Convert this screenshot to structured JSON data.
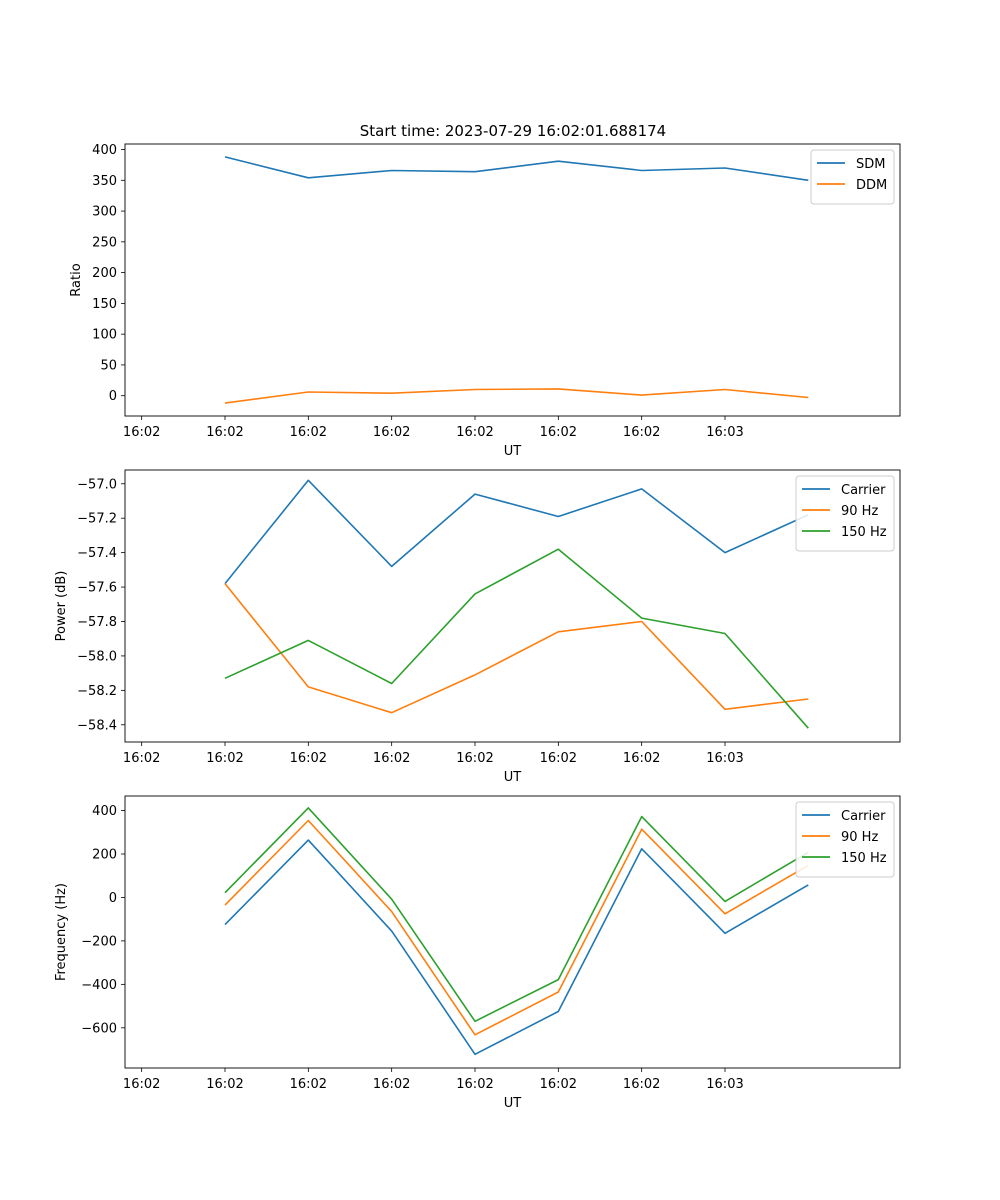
{
  "figure_title": "Start time: 2023-07-29 16:02:01.688174",
  "chart_data": [
    {
      "type": "line",
      "title": "Start time: 2023-07-29 16:02:01.688174",
      "xlabel": "UT",
      "ylabel": "Ratio",
      "x_tick_labels": [
        "16:02",
        "16:02",
        "16:02",
        "16:02",
        "16:02",
        "16:02",
        "16:02",
        "16:03"
      ],
      "x_index": [
        1,
        2,
        3,
        4,
        5,
        6,
        7,
        8
      ],
      "xlim": [
        -0.2,
        9.1
      ],
      "ylim": [
        -33,
        409
      ],
      "yticks": [
        0,
        50,
        100,
        150,
        200,
        250,
        300,
        350,
        400
      ],
      "yticks_labels": [
        "0",
        "50",
        "100",
        "150",
        "200",
        "250",
        "300",
        "350",
        "400"
      ],
      "legend_position": "top-right",
      "series": [
        {
          "name": "SDM",
          "color": "#1f77b4",
          "values": [
            388,
            354,
            366,
            364,
            381,
            366,
            370,
            350
          ]
        },
        {
          "name": "DDM",
          "color": "#ff7f0e",
          "values": [
            -12,
            6,
            4,
            10,
            11,
            1,
            10,
            -3
          ]
        }
      ]
    },
    {
      "type": "line",
      "title": "",
      "xlabel": "UT",
      "ylabel": "Power (dB)",
      "x_tick_labels": [
        "16:02",
        "16:02",
        "16:02",
        "16:02",
        "16:02",
        "16:02",
        "16:02",
        "16:03"
      ],
      "x_index": [
        1,
        2,
        3,
        4,
        5,
        6,
        7,
        8
      ],
      "xlim": [
        -0.2,
        9.1
      ],
      "ylim": [
        -58.5,
        -56.92
      ],
      "yticks": [
        -58.4,
        -58.2,
        -58.0,
        -57.8,
        -57.6,
        -57.4,
        -57.2,
        -57.0
      ],
      "yticks_labels": [
        "−58.4",
        "−58.2",
        "−58.0",
        "−57.8",
        "−57.6",
        "−57.4",
        "−57.2",
        "−57.0"
      ],
      "legend_position": "top-right",
      "series": [
        {
          "name": "Carrier",
          "color": "#1f77b4",
          "values": [
            -57.58,
            -56.98,
            -57.48,
            -57.06,
            -57.19,
            -57.03,
            -57.4,
            -57.18
          ]
        },
        {
          "name": "90 Hz",
          "color": "#ff7f0e",
          "values": [
            -57.58,
            -58.18,
            -58.33,
            -58.11,
            -57.86,
            -57.8,
            -58.31,
            -58.25
          ]
        },
        {
          "name": "150 Hz",
          "color": "#2ca02c",
          "values": [
            -58.13,
            -57.91,
            -58.16,
            -57.64,
            -57.38,
            -57.78,
            -57.87,
            -58.42
          ]
        }
      ]
    },
    {
      "type": "line",
      "title": "",
      "xlabel": "UT",
      "ylabel": "Frequency (Hz)",
      "x_tick_labels": [
        "16:02",
        "16:02",
        "16:02",
        "16:02",
        "16:02",
        "16:02",
        "16:02",
        "16:03"
      ],
      "x_index": [
        1,
        2,
        3,
        4,
        5,
        6,
        7,
        8
      ],
      "xlim": [
        -0.2,
        9.1
      ],
      "ylim": [
        -785,
        467
      ],
      "yticks": [
        -600,
        -400,
        -200,
        0,
        200,
        400
      ],
      "yticks_labels": [
        "−600",
        "−400",
        "−200",
        "0",
        "200",
        "400"
      ],
      "legend_position": "top-right",
      "series": [
        {
          "name": "Carrier",
          "color": "#1f77b4",
          "values": [
            -125,
            264,
            -155,
            -722,
            -525,
            224,
            -165,
            58
          ]
        },
        {
          "name": "90 Hz",
          "color": "#ff7f0e",
          "values": [
            -35,
            354,
            -65,
            -632,
            -435,
            314,
            -75,
            148
          ]
        },
        {
          "name": "150 Hz",
          "color": "#2ca02c",
          "values": [
            22,
            412,
            -8,
            -570,
            -378,
            372,
            -18,
            208
          ]
        }
      ]
    }
  ]
}
